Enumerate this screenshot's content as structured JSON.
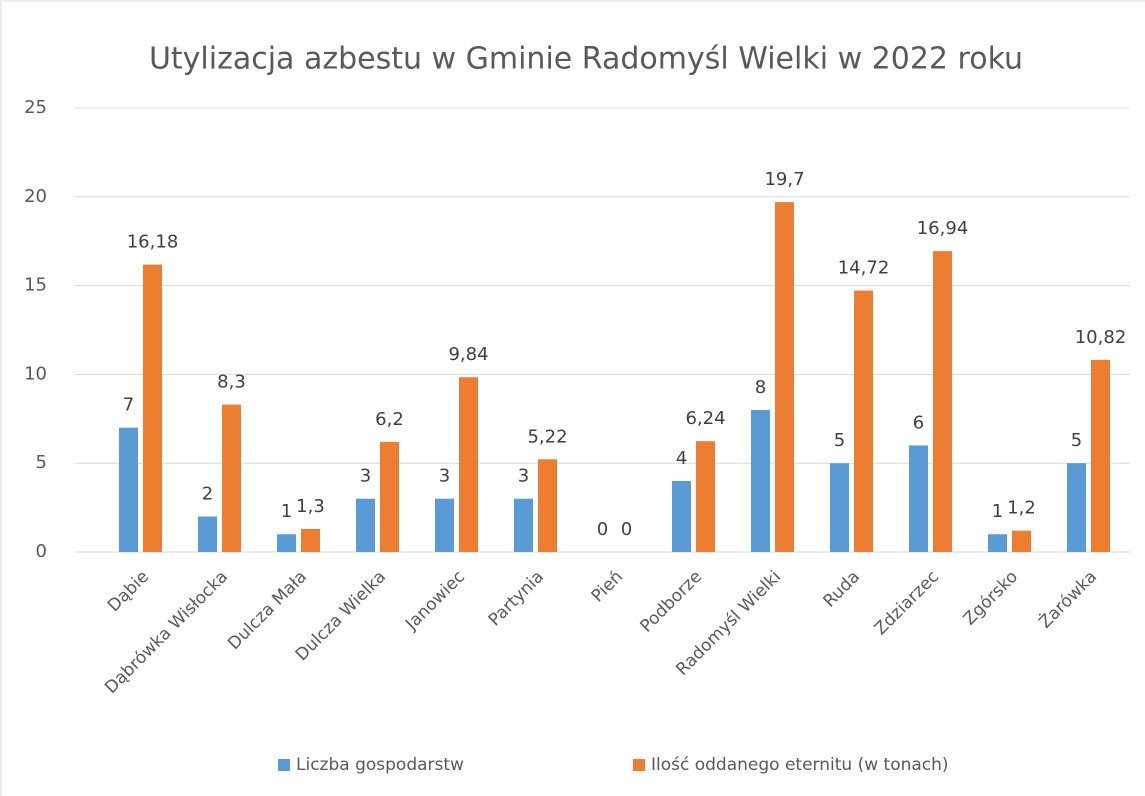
{
  "chart_data": {
    "type": "bar",
    "title": "Utylizacja azbestu w Gminie Radomyśl Wielki w 2022 roku",
    "categories": [
      "Dąbie",
      "Dąbrówka Wisłocka",
      "Dulcza Mała",
      "Dulcza Wielka",
      "Janowiec",
      "Partynia",
      "Pień",
      "Podborze",
      "Radomyśl Wielki",
      "Ruda",
      "Zdziarzec",
      "Zgórsko",
      "Żarówka"
    ],
    "series": [
      {
        "name": "Liczba gospodarstw",
        "color": "#5b9bd5",
        "values": [
          7,
          2,
          1,
          3,
          3,
          3,
          0,
          4,
          8,
          5,
          6,
          1,
          5
        ]
      },
      {
        "name": "Ilość oddanego eternitu (w tonach)",
        "color": "#ed7d31",
        "values": [
          16.18,
          8.3,
          1.3,
          6.2,
          9.84,
          5.22,
          0,
          6.24,
          19.7,
          14.72,
          16.94,
          1.2,
          10.82
        ],
        "value_labels": [
          "16,18",
          "8,3",
          "1,3",
          "6,2",
          "9,84",
          "5,22",
          "0",
          "6,24",
          "19,7",
          "14,72",
          "16,94",
          "1,2",
          "10,82"
        ]
      }
    ],
    "ylim": [
      0,
      25
    ],
    "yticks": [
      0,
      5,
      10,
      15,
      20,
      25
    ],
    "grid": true,
    "legend": "bottom"
  }
}
